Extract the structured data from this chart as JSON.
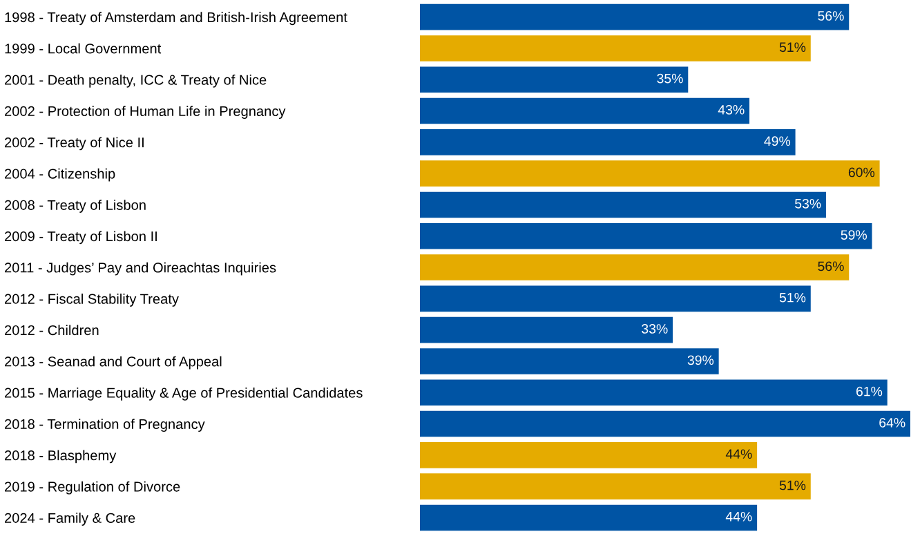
{
  "chart_data": {
    "type": "bar",
    "orientation": "horizontal",
    "data_labels": true,
    "grid": false,
    "tick_labels": "y",
    "categories": [
      "1998 - Treaty of Amsterdam and British-Irish Agreement",
      "1999 - Local Government",
      "2001 - Death penalty, ICC & Treaty of Nice",
      "2002 - Protection of Human Life in Pregnancy",
      "2002 - Treaty of Nice II",
      "2004 - Citizenship",
      "2008 - Treaty of Lisbon",
      "2009 - Treaty of Lisbon II",
      "2011 - Judges’ Pay and Oireachtas Inquiries",
      "2012 - Fiscal Stability Treaty",
      "2012 - Children",
      "2013 - Seanad and Court of Appeal",
      "2015 - Marriage Equality & Age of Presidential Candidates",
      "2018 - Termination of Pregnancy",
      "2018 - Blasphemy",
      "2019 - Regulation of Divorce",
      "2024 - Family & Care"
    ],
    "values": [
      56,
      51,
      35,
      43,
      49,
      60,
      53,
      59,
      56,
      51,
      33,
      39,
      61,
      64,
      44,
      51,
      44
    ],
    "value_labels": [
      "56%",
      "51%",
      "35%",
      "43%",
      "49%",
      "60%",
      "53%",
      "59%",
      "56%",
      "51%",
      "33%",
      "39%",
      "61%",
      "64%",
      "44%",
      "51%",
      "44%"
    ],
    "colors": [
      "#0054a4",
      "#e5ab00",
      "#0054a4",
      "#0054a4",
      "#0054a4",
      "#e5ab00",
      "#0054a4",
      "#0054a4",
      "#e5ab00",
      "#0054a4",
      "#0054a4",
      "#0054a4",
      "#0054a4",
      "#0054a4",
      "#e5ab00",
      "#e5ab00",
      "#0054a4"
    ]
  }
}
